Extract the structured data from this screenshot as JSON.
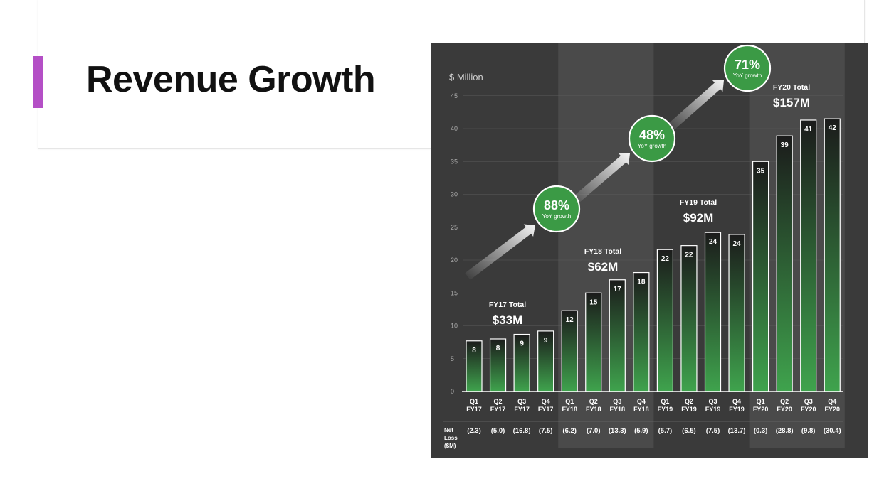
{
  "slide": {
    "title": "Revenue Growth",
    "accent_color": "#b44fc6"
  },
  "chart_data": {
    "type": "bar",
    "ylabel": "$ Million",
    "ylim": [
      0,
      45
    ],
    "yticks": [
      0,
      5,
      10,
      15,
      20,
      25,
      30,
      35,
      40,
      45
    ],
    "grid": true,
    "categories": [
      [
        "Q1",
        "FY17"
      ],
      [
        "Q2",
        "FY17"
      ],
      [
        "Q3",
        "FY17"
      ],
      [
        "Q4",
        "FY17"
      ],
      [
        "Q1",
        "FY18"
      ],
      [
        "Q2",
        "FY18"
      ],
      [
        "Q3",
        "FY18"
      ],
      [
        "Q4",
        "FY18"
      ],
      [
        "Q1",
        "FY19"
      ],
      [
        "Q2",
        "FY19"
      ],
      [
        "Q3",
        "FY19"
      ],
      [
        "Q4",
        "FY19"
      ],
      [
        "Q1",
        "FY20"
      ],
      [
        "Q2",
        "FY20"
      ],
      [
        "Q3",
        "FY20"
      ],
      [
        "Q4",
        "FY20"
      ]
    ],
    "values": [
      7.7,
      8.0,
      8.7,
      9.2,
      12.3,
      15.0,
      17.0,
      18.1,
      21.6,
      22.2,
      24.2,
      23.9,
      35.0,
      38.9,
      41.3,
      41.5
    ],
    "value_labels": [
      "8",
      "8",
      "9",
      "9",
      "12",
      "15",
      "17",
      "18",
      "22",
      "22",
      "24",
      "24",
      "35",
      "39",
      "41",
      "42"
    ],
    "net_loss_label": [
      "Net",
      "Loss",
      "($M)"
    ],
    "net_loss": [
      "(2.3)",
      "(5.0)",
      "(16.8)",
      "(7.5)",
      "(6.2)",
      "(7.0)",
      "(13.3)",
      "(5.9)",
      "(5.7)",
      "(6.5)",
      "(7.5)",
      "(13.7)",
      "(0.3)",
      "(28.8)",
      "(9.8)",
      "(30.4)"
    ],
    "year_totals": [
      {
        "label": "FY17 Total",
        "value": "$33M"
      },
      {
        "label": "FY18 Total",
        "value": "$62M"
      },
      {
        "label": "FY19 Total",
        "value": "$92M"
      },
      {
        "label": "FY20 Total",
        "value": "$157M"
      }
    ],
    "growth": [
      {
        "value": "88%",
        "label": "YoY growth"
      },
      {
        "value": "48%",
        "label": "YoY growth"
      },
      {
        "value": "71%",
        "label": "YoY growth"
      }
    ],
    "colors": {
      "background": "#3a3a3a",
      "band": "#4a4a4a",
      "bar_top": "#1b1b1b",
      "bar_bottom": "#3fa34d",
      "growth_circle": "#3b9a45",
      "text": "#ffffff",
      "tick_text": "#a8a8a8"
    }
  }
}
